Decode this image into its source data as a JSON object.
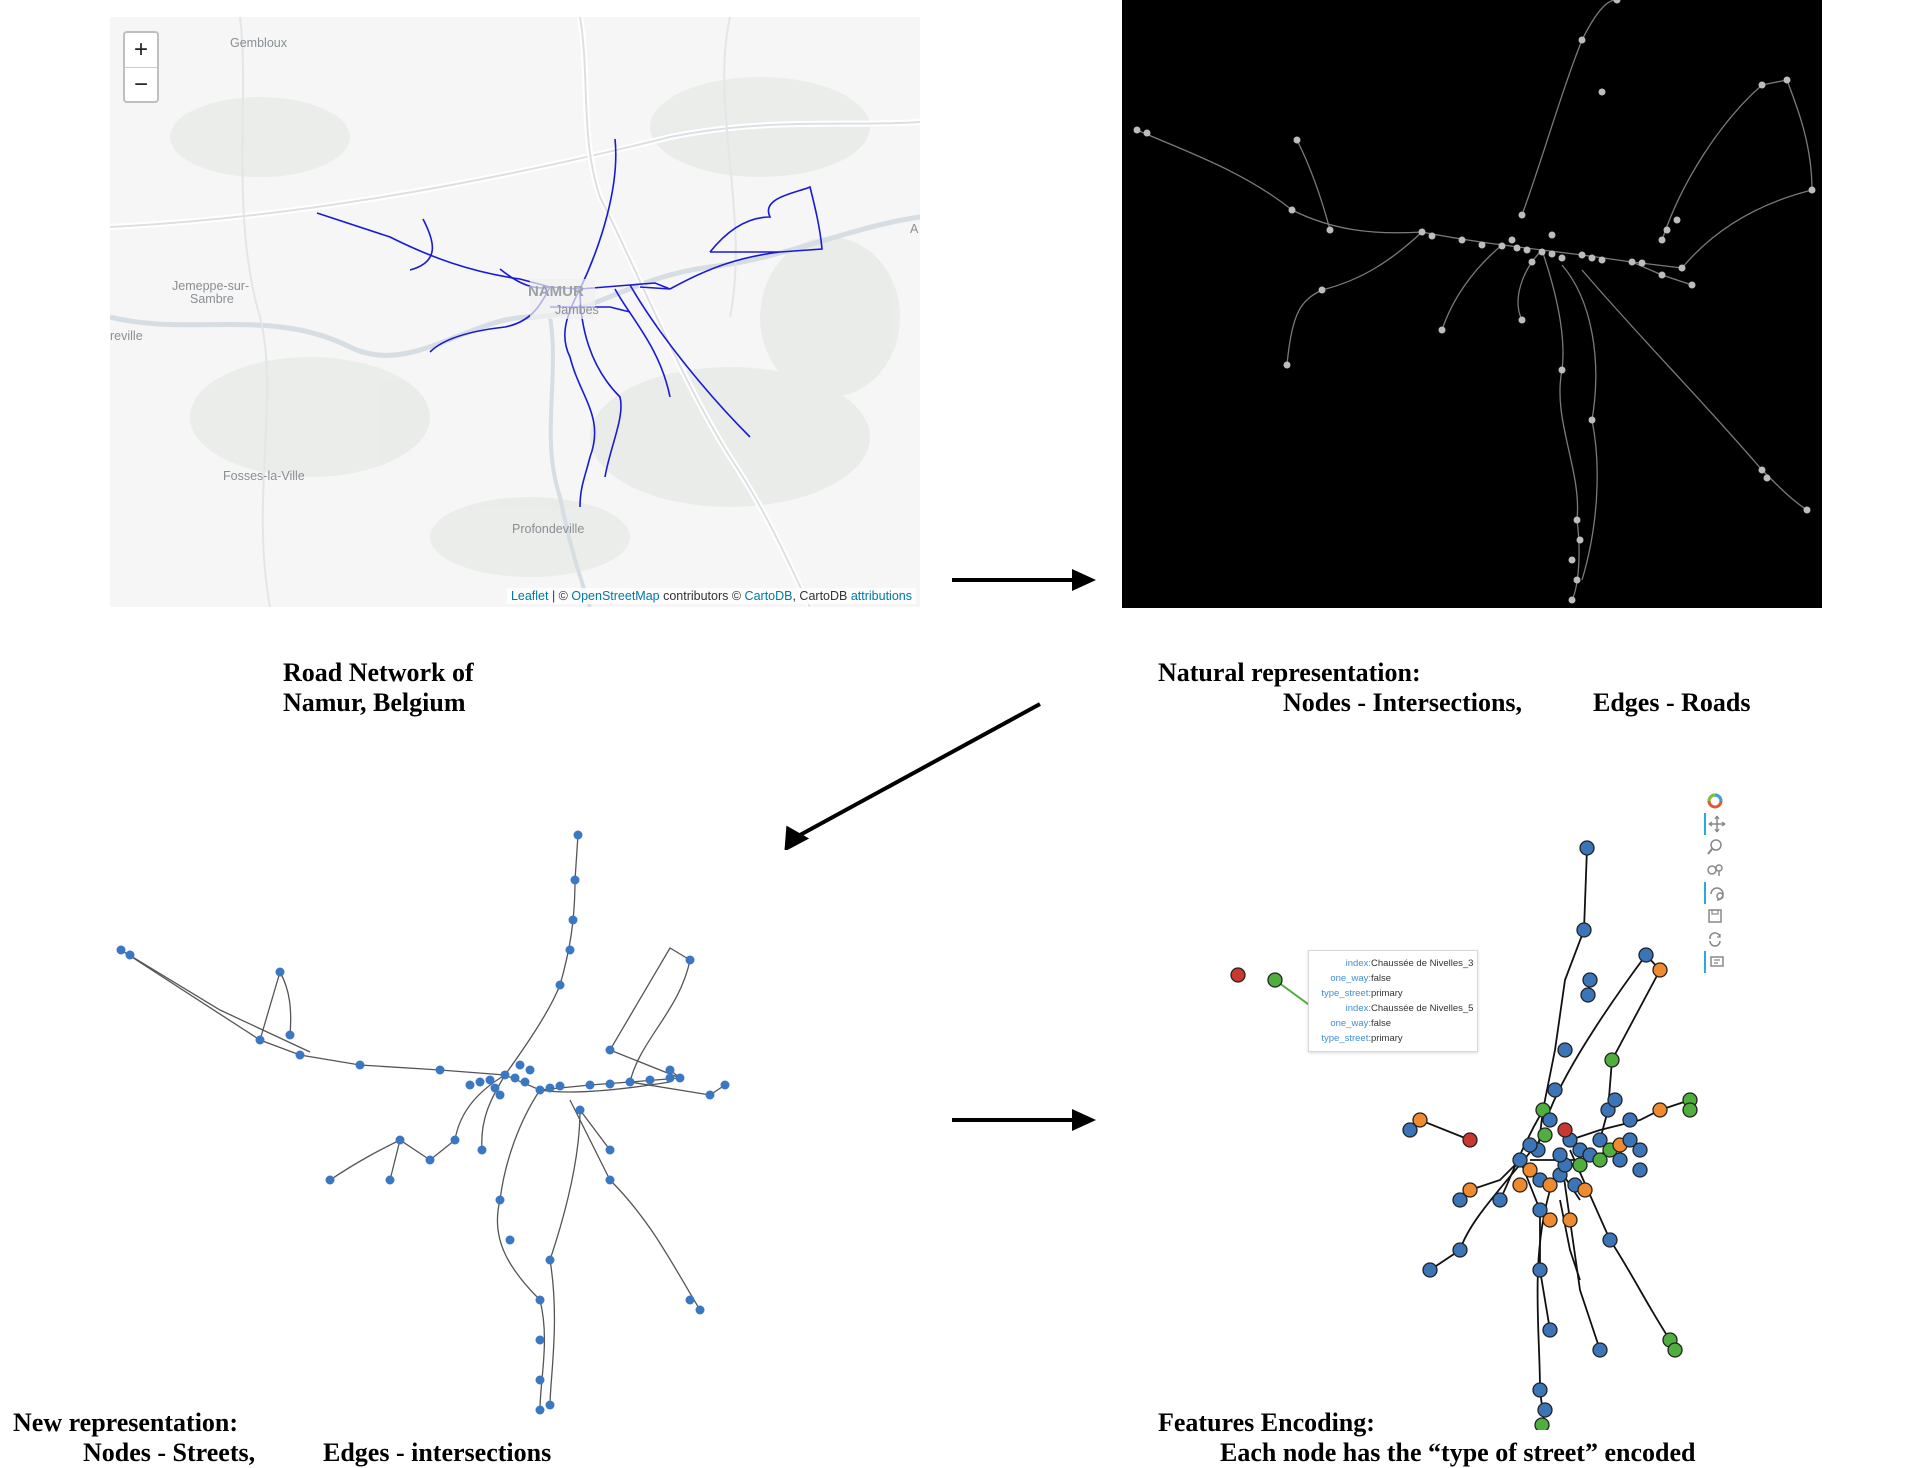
{
  "map": {
    "zoom_in_label": "+",
    "zoom_out_label": "−",
    "places": [
      "Gembloux",
      "Jemeppe-sur-",
      "Sambre",
      "reville",
      "NAMUR",
      "Jambes",
      "Fosses-la-Ville",
      "Profondeville",
      "A"
    ],
    "attribution": {
      "leaflet": "Leaflet",
      "sep1": " | © ",
      "osm": "OpenStreetMap",
      "contrib": " contributors © ",
      "cartodb": "CartoDB",
      "sep2": ", CartoDB ",
      "attributions": "attributions"
    },
    "road_color": "#1a1ad6"
  },
  "natural": {
    "background": "#000000",
    "edge_color": "#7a7a7a",
    "node_color": "#bdbdbd"
  },
  "streets": {
    "node_color": "#3a78c3",
    "edge_color": "#555555"
  },
  "features": {
    "tooltip": [
      {
        "key": "index:",
        "value": "Chaussée de Nivelles_3"
      },
      {
        "key": "one_way:",
        "value": "false"
      },
      {
        "key": "type_street:",
        "value": "primary"
      },
      {
        "key": "index:",
        "value": "Chaussée de Nivelles_5"
      },
      {
        "key": "one_way:",
        "value": "false"
      },
      {
        "key": "type_street:",
        "value": "primary"
      }
    ],
    "colors": {
      "blue": "#3b75b8",
      "orange": "#ef8a2e",
      "green": "#4fae3e",
      "red": "#c8382e"
    }
  },
  "captions": {
    "road_network_line1": "Road Network of",
    "road_network_line2": "Namur, Belgium",
    "natural_line1": "Natural representation:",
    "natural_line2a": "Nodes - Intersections,",
    "natural_line2b": "Edges - Roads",
    "new_line1": "New representation:",
    "new_line2a": "Nodes - Streets,",
    "new_line2b": "Edges - intersections",
    "features_line1": "Features Encoding:",
    "features_line2": "Each node has the “type of street” encoded"
  }
}
